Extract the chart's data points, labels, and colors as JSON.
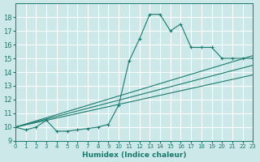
{
  "xlabel": "Humidex (Indice chaleur)",
  "ylabel": "",
  "bg_color": "#cce8e8",
  "grid_color": "#ffffff",
  "line_color": "#1a7a6e",
  "xlim": [
    0,
    23
  ],
  "ylim": [
    9,
    19
  ],
  "yticks": [
    9,
    10,
    11,
    12,
    13,
    14,
    15,
    16,
    17,
    18
  ],
  "xticks": [
    0,
    1,
    2,
    3,
    4,
    5,
    6,
    7,
    8,
    9,
    10,
    11,
    12,
    13,
    14,
    15,
    16,
    17,
    18,
    19,
    20,
    21,
    22,
    23
  ],
  "scatter_x": [
    0,
    1,
    2,
    3,
    4,
    5,
    6,
    7,
    8,
    9,
    10,
    11,
    12,
    13,
    14,
    15,
    16,
    17,
    18,
    19,
    20,
    21,
    22,
    23
  ],
  "scatter_y": [
    10.0,
    9.8,
    10.0,
    10.5,
    9.7,
    9.7,
    9.8,
    9.9,
    10.0,
    10.2,
    11.6,
    14.8,
    16.4,
    18.2,
    18.2,
    17.0,
    17.5,
    15.8,
    15.8,
    15.8,
    15.0,
    15.0,
    15.0,
    15.0
  ],
  "line1_x": [
    0,
    23
  ],
  "line1_y": [
    10.0,
    15.2
  ],
  "line2_x": [
    0,
    23
  ],
  "line2_y": [
    10.0,
    14.5
  ],
  "line3_x": [
    0,
    23
  ],
  "line3_y": [
    10.0,
    13.8
  ]
}
